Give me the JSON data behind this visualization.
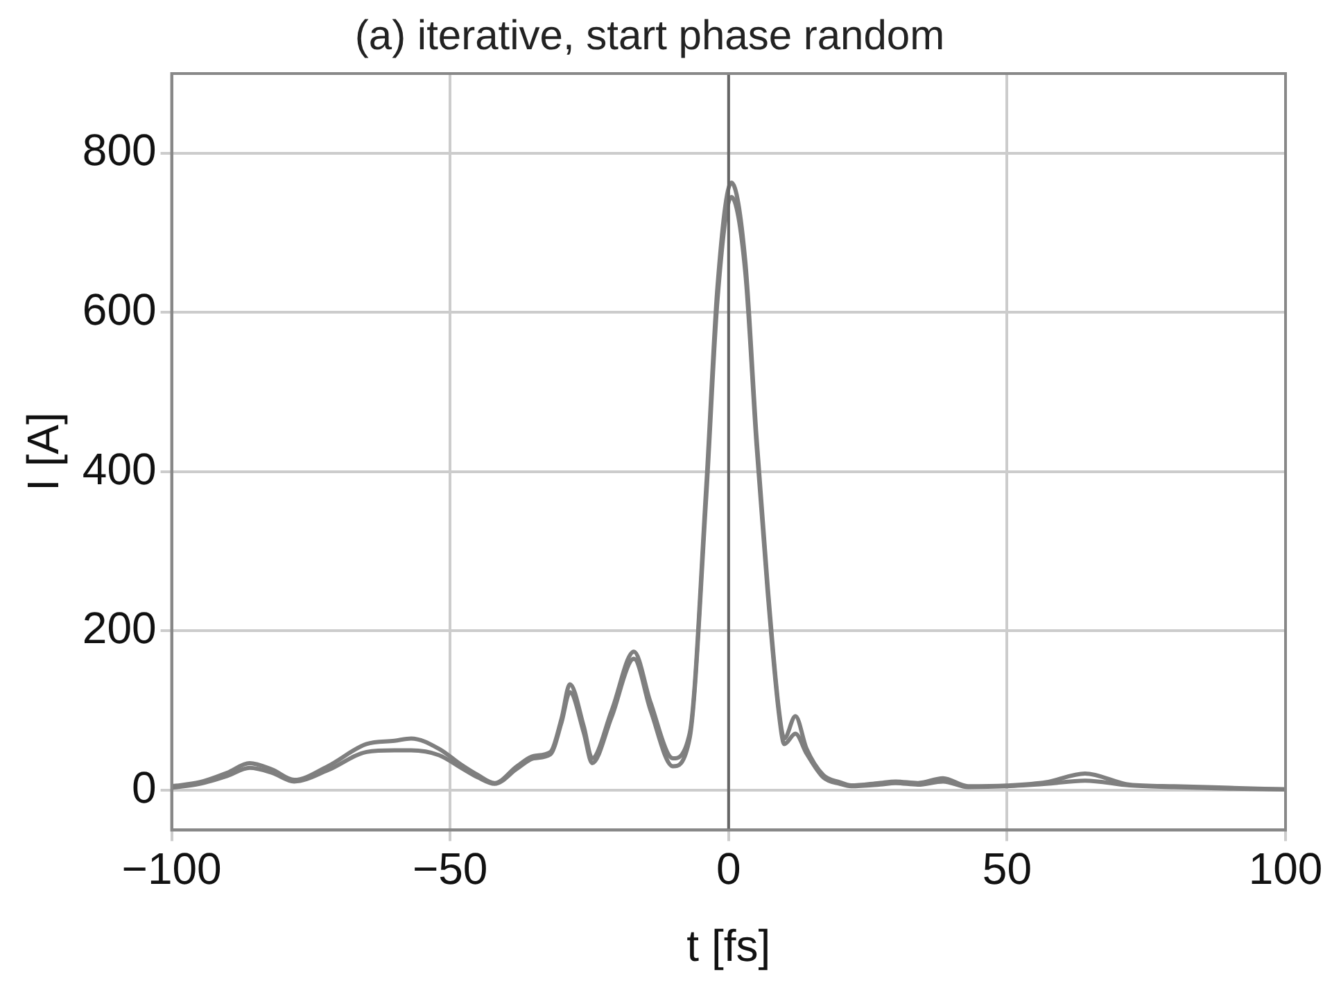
{
  "chart_data": {
    "type": "line",
    "title": "(a) iterative, start phase random",
    "xlabel": "t [fs]",
    "ylabel": "I [A]",
    "x": [
      -100,
      -95,
      -90,
      -86,
      -82,
      -78,
      -72,
      -65,
      -60,
      -57,
      -52,
      -48,
      -45,
      -42,
      -38,
      -35,
      -32,
      -30,
      -28.5,
      -26,
      -24.5,
      -21,
      -17,
      -14,
      -10,
      -7,
      -4,
      -2,
      0.5,
      3,
      5,
      7,
      9,
      10,
      12,
      14,
      17,
      20,
      22,
      27,
      30,
      34,
      38.5,
      43,
      50,
      57,
      64,
      72,
      80,
      90,
      100
    ],
    "series": [
      {
        "color": "#7f7f7f",
        "values": [
          5,
          10,
          22,
          34,
          26,
          13,
          30,
          58,
          62,
          65,
          52,
          32,
          19,
          9,
          30,
          43,
          48,
          90,
          133,
          80,
          40,
          100,
          174,
          110,
          40,
          71,
          383,
          632,
          763,
          664,
          445,
          258,
          103,
          65,
          93,
          52,
          19,
          10,
          6,
          9,
          11,
          9,
          15,
          5,
          6,
          10,
          21,
          7,
          5,
          3,
          1
        ]
      },
      {
        "color": "#7f7f7f",
        "values": [
          3,
          8,
          18,
          28,
          22,
          11,
          25,
          48,
          50,
          50,
          44,
          28,
          16,
          8,
          27,
          40,
          45,
          85,
          123,
          72,
          34,
          92,
          165,
          100,
          30,
          65,
          370,
          615,
          745,
          650,
          435,
          250,
          98,
          58,
          71,
          46,
          16,
          8,
          5,
          7,
          9,
          7,
          11,
          4,
          5,
          8,
          12,
          6,
          4,
          2,
          1
        ]
      }
    ],
    "xlim": [
      -100,
      100
    ],
    "xticks": [
      {
        "value": -100,
        "label": "−100"
      },
      {
        "value": -50,
        "label": "−50"
      },
      0,
      50,
      100
    ],
    "ylim": [
      -50,
      900
    ],
    "yticks": [
      0,
      200,
      400,
      600,
      800
    ],
    "grid": true,
    "legend": false,
    "marker": "none",
    "line_style": "solid",
    "ref_lines": [
      {
        "axis": "x",
        "value": 0,
        "color": "#666666"
      }
    ]
  }
}
